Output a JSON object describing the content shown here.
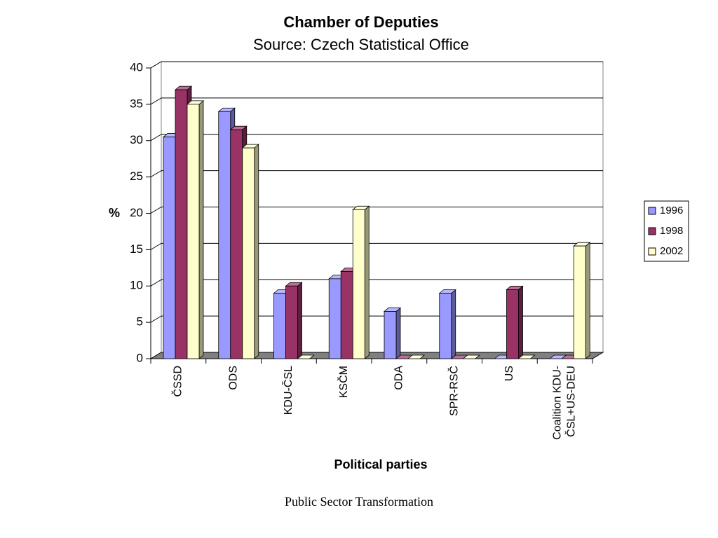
{
  "chart_data": {
    "type": "bar3d",
    "title": "Chamber of Deputies",
    "subtitle": "Source: Czech Statistical Office",
    "y_label": "%",
    "x_label": "Political parties",
    "categories": [
      "ČSSD",
      "ODS",
      "KDU-ČSL",
      "KSČM",
      "ODA",
      "SPR-RSČ",
      "US",
      "Coalition KDU-ČSL+US-DEU"
    ],
    "series": [
      {
        "name": "1996",
        "color": "#9999ff",
        "values": [
          30.5,
          34,
          9,
          11,
          6.5,
          9,
          0,
          0
        ]
      },
      {
        "name": "1998",
        "color": "#993366",
        "values": [
          37,
          31.5,
          10,
          12,
          0,
          0,
          9.5,
          0
        ]
      },
      {
        "name": "2002",
        "color": "#ffffcc",
        "values": [
          35,
          29,
          0,
          20.5,
          0,
          0,
          0,
          15.5
        ]
      }
    ],
    "ylim": [
      0,
      40
    ],
    "yticks": [
      0,
      5,
      10,
      15,
      20,
      25,
      30,
      35,
      40
    ],
    "grid": true,
    "legend": "right"
  },
  "footer": "Public Sector Transformation"
}
